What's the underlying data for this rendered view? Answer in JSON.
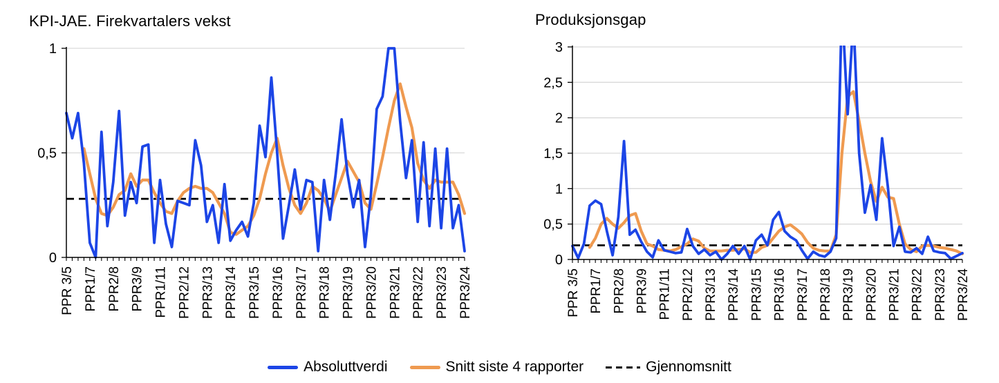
{
  "colors": {
    "blue": "#1c45e6",
    "orange": "#ef9a50",
    "dashed": "#000000",
    "grid": "#d9d9d9",
    "axis": "#000000",
    "text": "#000000",
    "background": "#ffffff"
  },
  "legend": {
    "items": [
      {
        "label": "Absoluttverdi",
        "style": "solid",
        "color": "blue"
      },
      {
        "label": "Snitt siste 4 rapporter",
        "style": "solid",
        "color": "orange"
      },
      {
        "label": "Gjennomsnitt",
        "style": "dashed",
        "color": "dashed"
      }
    ]
  },
  "chart_data": [
    {
      "type": "line",
      "name": "kpi-jae-chart",
      "title": "KPI-JAE. Firekvartalers vekst",
      "ylim": [
        0,
        1
      ],
      "y_ticks": [
        {
          "v": 0,
          "label": "0"
        },
        {
          "v": 0.5,
          "label": "0,5"
        },
        {
          "v": 1,
          "label": "1"
        }
      ],
      "x_labels": [
        "PPR 3/5",
        "PPR1/7",
        "PPR2/8",
        "PPR3/9",
        "PPR1/11",
        "PPR2/12",
        "PPR3/13",
        "PPR3/14",
        "PPR3/15",
        "PPR3/16",
        "PPR3/17",
        "PPR3/18",
        "PPR3/19",
        "PPR3/20",
        "PPR3/21",
        "PPR3/22",
        "PPR3/23",
        "PPR3/24"
      ],
      "x_label_every": 4,
      "mean": 0.28,
      "mean_label": "Gjennomsnitt",
      "series": [
        {
          "name": "Absoluttverdi",
          "color": "blue",
          "values": [
            0.69,
            0.57,
            0.69,
            0.45,
            0.07,
            0.0,
            0.6,
            0.15,
            0.36,
            0.7,
            0.2,
            0.36,
            0.26,
            0.53,
            0.54,
            0.07,
            0.37,
            0.16,
            0.05,
            0.27,
            0.26,
            0.25,
            0.56,
            0.44,
            0.17,
            0.25,
            0.07,
            0.35,
            0.08,
            0.13,
            0.17,
            0.1,
            0.26,
            0.63,
            0.48,
            0.86,
            0.5,
            0.09,
            0.25,
            0.42,
            0.23,
            0.37,
            0.36,
            0.03,
            0.37,
            0.18,
            0.4,
            0.66,
            0.4,
            0.24,
            0.37,
            0.05,
            0.3,
            0.71,
            0.77,
            1.0,
            1.0,
            0.65,
            0.38,
            0.56,
            0.17,
            0.55,
            0.15,
            0.52,
            0.14,
            0.52,
            0.14,
            0.25,
            0.03
          ]
        },
        {
          "name": "Snitt siste 4 rapporter",
          "color": "orange",
          "values": [
            null,
            null,
            null,
            0.52,
            0.4,
            0.28,
            0.21,
            0.2,
            0.24,
            0.3,
            0.32,
            0.4,
            0.34,
            0.37,
            0.37,
            0.31,
            0.26,
            0.22,
            0.21,
            0.27,
            0.31,
            0.33,
            0.34,
            0.33,
            0.33,
            0.31,
            0.26,
            0.21,
            0.12,
            0.11,
            0.13,
            0.15,
            0.2,
            0.28,
            0.4,
            0.5,
            0.57,
            0.44,
            0.33,
            0.25,
            0.21,
            0.26,
            0.34,
            0.32,
            0.28,
            0.22,
            0.3,
            0.38,
            0.46,
            0.41,
            0.36,
            0.26,
            0.23,
            0.35,
            0.48,
            0.62,
            0.75,
            0.83,
            0.72,
            0.62,
            0.45,
            0.37,
            0.33,
            0.37,
            0.36,
            0.36,
            0.36,
            0.3,
            0.21
          ]
        }
      ]
    },
    {
      "type": "line",
      "name": "produksjonsgap-chart",
      "title": "Produksjonsgap",
      "ylim": [
        0,
        3
      ],
      "y_ticks": [
        {
          "v": 0,
          "label": "0"
        },
        {
          "v": 0.5,
          "label": "0,5"
        },
        {
          "v": 1,
          "label": "1"
        },
        {
          "v": 1.5,
          "label": "1,5"
        },
        {
          "v": 2,
          "label": "2"
        },
        {
          "v": 2.5,
          "label": "2,5"
        },
        {
          "v": 3,
          "label": "3"
        }
      ],
      "x_labels": [
        "PPR 3/5",
        "PPR1/7",
        "PPR2/8",
        "PPR3/9",
        "PPR1/11",
        "PPR2/12",
        "PPR3/13",
        "PPR3/14",
        "PPR3/15",
        "PPR3/16",
        "PPR3/17",
        "PPR3/18",
        "PPR3/19",
        "PPR3/20",
        "PPR3/21",
        "PPR3/22",
        "PPR3/23",
        "PPR3/24"
      ],
      "x_label_every": 4,
      "mean": 0.2,
      "mean_label": "Gjennomsnitt",
      "series": [
        {
          "name": "Absoluttverdi",
          "color": "blue",
          "values": [
            0.19,
            0.02,
            0.22,
            0.76,
            0.83,
            0.78,
            0.4,
            0.06,
            0.6,
            1.67,
            0.35,
            0.42,
            0.25,
            0.11,
            0.03,
            0.27,
            0.13,
            0.11,
            0.09,
            0.1,
            0.43,
            0.19,
            0.08,
            0.14,
            0.06,
            0.11,
            0.0,
            0.08,
            0.19,
            0.08,
            0.19,
            0.0,
            0.27,
            0.35,
            0.2,
            0.56,
            0.67,
            0.4,
            0.32,
            0.27,
            0.13,
            0.01,
            0.11,
            0.06,
            0.04,
            0.11,
            0.3,
            3.6,
            2.05,
            3.4,
            1.5,
            0.66,
            1.05,
            0.56,
            1.71,
            1.03,
            0.19,
            0.46,
            0.11,
            0.1,
            0.16,
            0.08,
            0.32,
            0.12,
            0.1,
            0.09,
            0.01,
            0.05,
            0.09
          ]
        },
        {
          "name": "Snitt siste 4 rapporter",
          "color": "orange",
          "values": [
            null,
            null,
            null,
            0.17,
            0.3,
            0.5,
            0.58,
            0.5,
            0.44,
            0.52,
            0.62,
            0.65,
            0.4,
            0.22,
            0.19,
            0.14,
            0.13,
            0.12,
            0.14,
            0.18,
            0.22,
            0.29,
            0.26,
            0.16,
            0.12,
            0.12,
            0.12,
            0.13,
            0.13,
            0.14,
            0.15,
            0.1,
            0.1,
            0.17,
            0.2,
            0.3,
            0.4,
            0.46,
            0.49,
            0.43,
            0.36,
            0.24,
            0.16,
            0.13,
            0.12,
            0.12,
            0.35,
            1.5,
            2.3,
            2.37,
            1.95,
            1.5,
            1.1,
            0.82,
            1.02,
            0.88,
            0.86,
            0.5,
            0.22,
            0.14,
            0.11,
            0.19,
            0.2,
            0.19,
            0.17,
            0.16,
            0.14,
            0.12,
            0.08
          ]
        }
      ]
    }
  ]
}
